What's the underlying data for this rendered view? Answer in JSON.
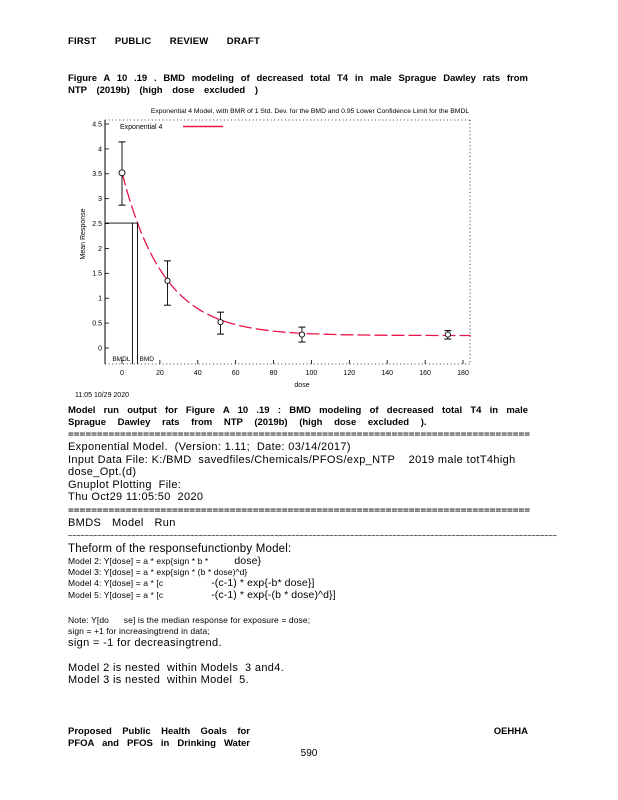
{
  "header": "FIRST PUBLIC REVIEW DRAFT",
  "caption": {
    "line1": "Figure A 10 .19 . BMD modeling of decreased total T4 in male Sprague Dawley rats from",
    "line2": "NTP (2019b) (high dose excluded )"
  },
  "chart_data": {
    "type": "scatter",
    "title": "Exponential 4 Model, with BMR of 1 Std. Dev. for the BMD and 0.95 Lower Confidence Limit for the BMDL",
    "legend": "Exponential 4",
    "curve_color": "#e8174b",
    "xlabel": "dose",
    "ylabel": "Mean Response",
    "xlim": [
      -9,
      184
    ],
    "ylim": [
      -0.32,
      4.58
    ],
    "xticks": [
      0,
      20,
      40,
      60,
      80,
      100,
      120,
      140,
      160,
      180
    ],
    "ytick_values": [
      0,
      0.5,
      1,
      1.5,
      2,
      2.5,
      3,
      3.5,
      4,
      4.5
    ],
    "ytick_labels": [
      "0",
      "0.5",
      "1",
      "1.5",
      "2",
      "2.5",
      "3",
      "3.5",
      "4",
      "4.5"
    ],
    "points": {
      "x": [
        0,
        24,
        52,
        95,
        172
      ],
      "y": [
        3.52,
        1.35,
        0.52,
        0.27,
        0.27
      ],
      "err_lo": [
        2.87,
        0.86,
        0.28,
        0.12,
        0.18
      ],
      "err_hi": [
        4.14,
        1.75,
        0.72,
        0.42,
        0.35
      ]
    },
    "curve": {
      "model": "exponential4",
      "a": 3.52,
      "b": 0.045,
      "c": 0.071
    },
    "bmd": {
      "bmd": 8.2,
      "bmdl": 5.5,
      "bmr_response": 2.51,
      "bmd_label": "BMD",
      "bmdl_label": "BMDL"
    },
    "timestamp": "11:05 10/29 2020"
  },
  "output": {
    "lines": [
      {
        "cls": "mrun jline",
        "text": "Model run output for Figure A 10 .19 : BMD modeling of decreased total T4 in male"
      },
      {
        "cls": "mrun ws9",
        "text": "Sprague Dawley rats from NTP (2019b) (high dose excluded )."
      },
      {
        "cls": "sep-eq",
        "text": "================================================================================"
      },
      {
        "cls": "t-norm",
        "text": "Exponential Model.  (Version: 1.11;  Date: 03/14/2017)"
      },
      {
        "cls": "t-norm",
        "text": "Input Data File: K:/BMD  savedfiles/Chemicals/PFOS/exp_NTP    2019 male totT4high"
      },
      {
        "cls": "t-norm",
        "text": "dose_Opt.(d)"
      },
      {
        "cls": "t-norm",
        "text": "Gnuplot Plotting  File:"
      },
      {
        "cls": "t-norm",
        "text": "Thu Oct29 11:05:50  2020"
      },
      {
        "cls": "sep-eq",
        "text": "================================================================================"
      },
      {
        "cls": "t-norm ws2",
        "text": "BMDS  Model  Run"
      },
      {
        "cls": "sep-tilde",
        "text": "~~~~~~~~~~~~~~~~~~~~~~~~~~~~~~~~~~~~~~~~~~~~~~~~~~~~~~~~~~~~~~~~~~~~~~~~~~~~~~~~~~~~~~~~~~~~~~~~~~~~~~~~~~~~~~~~~~~~"
      },
      {
        "cls": "t-form",
        "text": "Theform of the responsefunctionby Model:"
      },
      {
        "cls": "m-line",
        "segs": [
          {
            "c": "tny",
            "s": "Model 2: Y[dose] = a * exp{sign * b *"
          },
          {
            "c": "mid g26",
            "s": "dose}"
          }
        ]
      },
      {
        "cls": "m-line",
        "segs": [
          {
            "c": "tny",
            "s": "Model 3: Y[dose] = a * exp{sign * (b * dose)^d}"
          }
        ]
      },
      {
        "cls": "m-line",
        "segs": [
          {
            "c": "tny",
            "s": "Model 4: Y[dose] = a * [c"
          },
          {
            "c": "mid g48",
            "s": "-(c-1) * exp{-b* dose}]"
          }
        ]
      },
      {
        "cls": "m-line",
        "segs": [
          {
            "c": "tny",
            "s": "Model 5: Y[dose] = a * [c"
          },
          {
            "c": "mid g48",
            "s": "-(c-1) * exp{-(b * dose)^d}]"
          }
        ]
      },
      {
        "cls": "gap14"
      },
      {
        "cls": "t-tiny",
        "text": "Note: Y[do      se] is the median response for exposure = dose;"
      },
      {
        "cls": "t-tiny",
        "text": "sign = +1 for increasingtrend in data;"
      },
      {
        "cls": "t-norm",
        "text": "sign = -1 for decreasingtrend."
      },
      {
        "cls": "gap12"
      },
      {
        "cls": "t-norm",
        "text": "Model 2 is nested  within Models  3 and4."
      },
      {
        "cls": "t-norm",
        "text": "Model 3 is nested  within Model  5."
      }
    ]
  },
  "footer": {
    "left1": "Proposed Public Health Goals for",
    "left2": "PFOA and PFOS in Drinking Water",
    "right": "OEHHA",
    "page_number": "590"
  }
}
